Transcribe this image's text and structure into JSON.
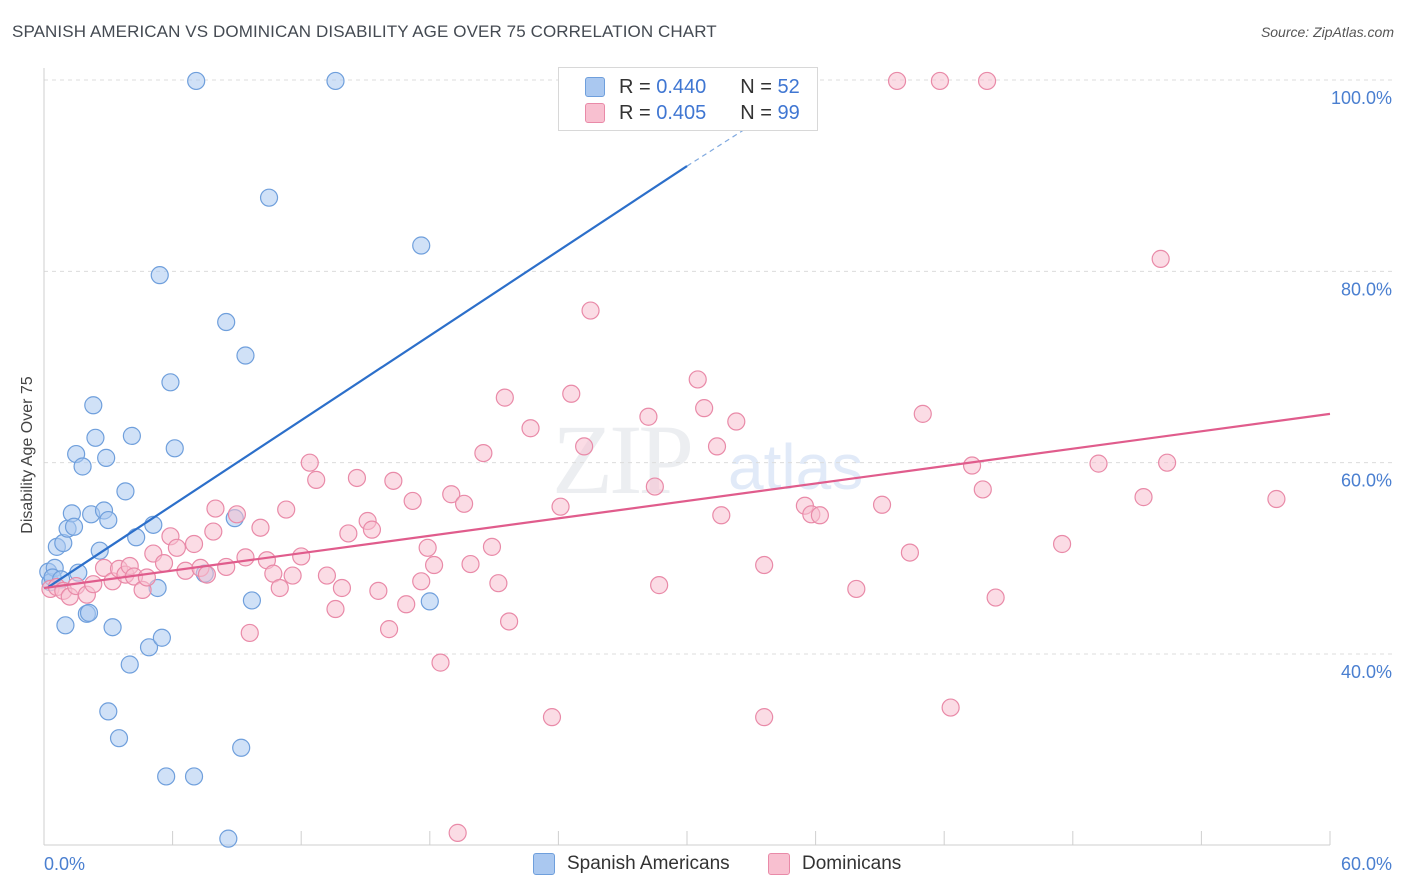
{
  "title": "SPANISH AMERICAN VS DOMINICAN DISABILITY AGE OVER 75 CORRELATION CHART",
  "source": "Source: ZipAtlas.com",
  "watermark": {
    "zip": "ZIP",
    "atlas": "atlas"
  },
  "legend_top": [
    {
      "r_label": "R =",
      "r_value": "0.440",
      "n_label": "N =",
      "n_value": "52",
      "color": "#aac8f0",
      "border": "#6f9fdc"
    },
    {
      "r_label": "R =",
      "r_value": "0.405",
      "n_label": "N =",
      "n_value": "99",
      "color": "#f8c0d0",
      "border": "#e98aa8"
    }
  ],
  "legend_bottom": [
    {
      "label": "Spanish Americans",
      "color": "#aac8f0",
      "border": "#6f9fdc"
    },
    {
      "label": "Dominicans",
      "color": "#f8c0d0",
      "border": "#e98aa8"
    }
  ],
  "chart_data": {
    "type": "scatter",
    "title": "SPANISH AMERICAN VS DOMINICAN DISABILITY AGE OVER 75 CORRELATION CHART",
    "xlabel": "",
    "ylabel": "Disability Age Over 75",
    "xlim": [
      0,
      60
    ],
    "ylim": [
      20,
      102
    ],
    "x_tick_labels": [
      "0.0%",
      "60.0%"
    ],
    "y_ticks": [
      40,
      60,
      80,
      100
    ],
    "y_tick_labels": [
      "40.0%",
      "60.0%",
      "80.0%",
      "100.0%"
    ],
    "grid": "dashed horizontal",
    "legend": "top-center",
    "series": [
      {
        "name": "Spanish Americans",
        "color": "#6f9fdc",
        "fill": "#aac8f0",
        "trend_color": "#2c6fca",
        "trend": {
          "x0": 0.2,
          "y0": 47.0,
          "x1": 30.0,
          "y1": 91.0,
          "x_dash_end": 33.5,
          "y_dash_end": 96.0
        },
        "points": [
          [
            0.2,
            48.6
          ],
          [
            0.3,
            47.5
          ],
          [
            0.5,
            49.0
          ],
          [
            0.6,
            51.2
          ],
          [
            0.4,
            48.0
          ],
          [
            0.8,
            47.8
          ],
          [
            0.9,
            51.6
          ],
          [
            1.0,
            43.0
          ],
          [
            1.1,
            53.1
          ],
          [
            1.3,
            54.7
          ],
          [
            1.4,
            53.3
          ],
          [
            1.5,
            60.9
          ],
          [
            1.8,
            59.6
          ],
          [
            1.6,
            48.5
          ],
          [
            2.0,
            44.2
          ],
          [
            2.1,
            44.3
          ],
          [
            2.2,
            54.6
          ],
          [
            2.3,
            66.0
          ],
          [
            2.4,
            62.6
          ],
          [
            2.6,
            50.8
          ],
          [
            2.8,
            55.0
          ],
          [
            2.9,
            60.5
          ],
          [
            3.0,
            54.0
          ],
          [
            3.2,
            42.8
          ],
          [
            3.0,
            34.0
          ],
          [
            3.5,
            31.2
          ],
          [
            3.8,
            57.0
          ],
          [
            4.0,
            38.9
          ],
          [
            4.1,
            62.8
          ],
          [
            4.3,
            52.2
          ],
          [
            4.9,
            40.7
          ],
          [
            5.1,
            53.5
          ],
          [
            5.3,
            46.9
          ],
          [
            5.4,
            79.6
          ],
          [
            5.5,
            41.7
          ],
          [
            5.7,
            27.2
          ],
          [
            5.9,
            68.4
          ],
          [
            6.1,
            61.5
          ],
          [
            7.0,
            27.2
          ],
          [
            7.1,
            99.9
          ],
          [
            7.5,
            48.4
          ],
          [
            8.5,
            74.7
          ],
          [
            8.6,
            20.7
          ],
          [
            8.9,
            54.2
          ],
          [
            9.2,
            30.2
          ],
          [
            9.4,
            71.2
          ],
          [
            9.7,
            45.6
          ],
          [
            10.5,
            87.7
          ],
          [
            13.6,
            99.9
          ],
          [
            17.6,
            82.7
          ],
          [
            18.0,
            45.5
          ],
          [
            28.5,
            99.9
          ]
        ]
      },
      {
        "name": "Dominicans",
        "color": "#e98aa8",
        "fill": "#f8c0d0",
        "trend_color": "#e05c8c",
        "trend": {
          "x0": 0.0,
          "y0": 46.9,
          "x1": 60.0,
          "y1": 65.1
        },
        "points": [
          [
            0.3,
            46.8
          ],
          [
            0.6,
            47.0
          ],
          [
            0.9,
            46.6
          ],
          [
            1.2,
            46.0
          ],
          [
            1.5,
            47.1
          ],
          [
            2.0,
            46.2
          ],
          [
            2.3,
            47.3
          ],
          [
            2.8,
            49.0
          ],
          [
            3.2,
            47.6
          ],
          [
            3.5,
            48.9
          ],
          [
            3.8,
            48.3
          ],
          [
            4.0,
            49.2
          ],
          [
            4.2,
            48.1
          ],
          [
            4.6,
            46.7
          ],
          [
            4.8,
            48.0
          ],
          [
            5.1,
            50.5
          ],
          [
            5.6,
            49.5
          ],
          [
            5.9,
            52.3
          ],
          [
            6.2,
            51.1
          ],
          [
            6.6,
            48.7
          ],
          [
            7.0,
            51.5
          ],
          [
            7.3,
            49.0
          ],
          [
            7.6,
            48.3
          ],
          [
            7.9,
            52.8
          ],
          [
            8.0,
            55.2
          ],
          [
            8.5,
            49.1
          ],
          [
            9.0,
            54.6
          ],
          [
            9.4,
            50.1
          ],
          [
            9.6,
            42.2
          ],
          [
            10.1,
            53.2
          ],
          [
            10.4,
            49.8
          ],
          [
            10.7,
            48.4
          ],
          [
            11.0,
            46.9
          ],
          [
            11.3,
            55.1
          ],
          [
            11.6,
            48.2
          ],
          [
            12.0,
            50.2
          ],
          [
            12.4,
            60.0
          ],
          [
            12.7,
            58.2
          ],
          [
            13.2,
            48.2
          ],
          [
            13.6,
            44.7
          ],
          [
            13.9,
            46.9
          ],
          [
            14.2,
            52.6
          ],
          [
            14.6,
            58.4
          ],
          [
            15.1,
            53.9
          ],
          [
            15.3,
            53.0
          ],
          [
            15.6,
            46.6
          ],
          [
            16.1,
            42.6
          ],
          [
            16.3,
            58.1
          ],
          [
            16.9,
            45.2
          ],
          [
            17.2,
            56.0
          ],
          [
            17.6,
            47.6
          ],
          [
            17.9,
            51.1
          ],
          [
            18.2,
            49.3
          ],
          [
            18.5,
            39.1
          ],
          [
            19.0,
            56.7
          ],
          [
            19.3,
            21.3
          ],
          [
            19.6,
            55.7
          ],
          [
            19.9,
            49.4
          ],
          [
            20.5,
            61.0
          ],
          [
            20.9,
            51.2
          ],
          [
            21.2,
            47.4
          ],
          [
            21.5,
            66.8
          ],
          [
            21.7,
            43.4
          ],
          [
            22.7,
            63.6
          ],
          [
            23.7,
            33.4
          ],
          [
            24.1,
            55.4
          ],
          [
            24.6,
            67.2
          ],
          [
            25.2,
            61.7
          ],
          [
            25.5,
            75.9
          ],
          [
            28.2,
            64.8
          ],
          [
            28.5,
            57.5
          ],
          [
            28.7,
            47.2
          ],
          [
            30.5,
            68.7
          ],
          [
            30.8,
            65.7
          ],
          [
            31.4,
            61.7
          ],
          [
            31.6,
            54.5
          ],
          [
            32.3,
            64.3
          ],
          [
            33.6,
            33.4
          ],
          [
            33.6,
            49.3
          ],
          [
            35.5,
            55.5
          ],
          [
            35.8,
            54.6
          ],
          [
            36.2,
            54.5
          ],
          [
            37.9,
            46.8
          ],
          [
            39.1,
            55.6
          ],
          [
            40.4,
            50.6
          ],
          [
            41.0,
            65.1
          ],
          [
            42.3,
            34.4
          ],
          [
            43.3,
            59.7
          ],
          [
            43.8,
            57.2
          ],
          [
            44.4,
            45.9
          ],
          [
            47.5,
            51.5
          ],
          [
            49.2,
            59.9
          ],
          [
            51.3,
            56.4
          ],
          [
            52.1,
            81.3
          ],
          [
            52.4,
            60.0
          ],
          [
            57.5,
            56.2
          ],
          [
            39.8,
            99.9
          ],
          [
            44.0,
            99.9
          ],
          [
            41.8,
            99.9
          ]
        ]
      }
    ]
  }
}
